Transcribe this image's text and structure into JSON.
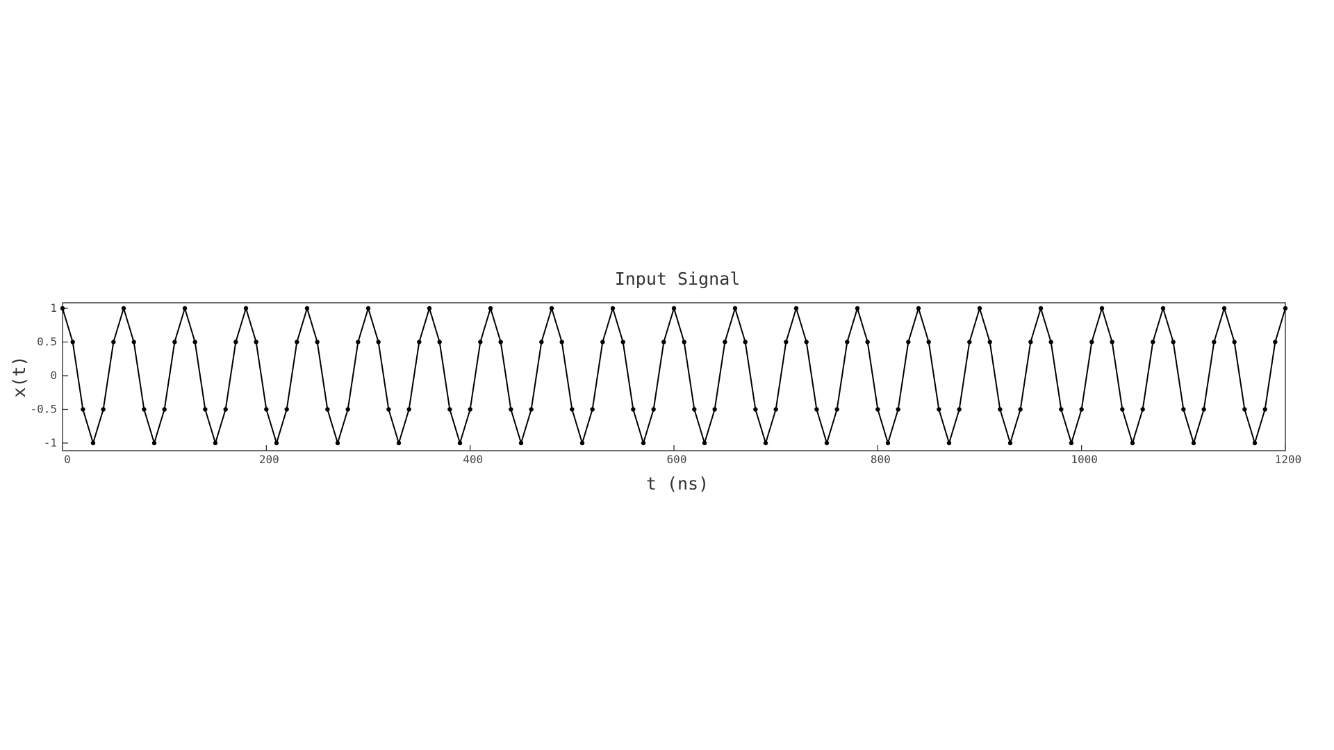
{
  "chart_data": {
    "type": "line",
    "title": "Input Signal",
    "xlabel": "t (ns)",
    "ylabel": "x(t)",
    "xlim": [
      0,
      1200
    ],
    "ylim": [
      -1.1,
      1
    ],
    "xticks": [
      0,
      200,
      400,
      600,
      800,
      1000,
      1200
    ],
    "xtick_labels": [
      "0",
      "200",
      "400",
      "600",
      "800",
      "1000",
      "1200"
    ],
    "yticks": [
      1,
      0.5,
      0,
      -0.5,
      -1
    ],
    "ytick_labels": [
      "1",
      "0.5",
      "0",
      "-0.5",
      "-1"
    ],
    "grid": false,
    "series": [
      {
        "color": "#000000",
        "marker": "dot",
        "x": [
          0,
          10,
          20,
          30,
          40,
          50,
          60,
          70,
          80,
          90,
          100,
          110,
          120,
          130,
          140,
          150,
          160,
          170,
          180,
          190,
          200,
          210,
          220,
          230,
          240,
          250,
          260,
          270,
          280,
          290,
          300,
          310,
          320,
          330,
          340,
          350,
          360,
          370,
          380,
          390,
          400,
          410,
          420,
          430,
          440,
          450,
          460,
          470,
          480,
          490,
          500,
          510,
          520,
          530,
          540,
          550,
          560,
          570,
          580,
          590,
          600,
          610,
          620,
          630,
          640,
          650,
          660,
          670,
          680,
          690,
          700,
          710,
          720,
          730,
          740,
          750,
          760,
          770,
          780,
          790,
          800,
          810,
          820,
          830,
          840,
          850,
          860,
          870,
          880,
          890,
          900,
          910,
          920,
          930,
          940,
          950,
          960,
          970,
          980,
          990,
          1000,
          1010,
          1020,
          1030,
          1040,
          1050,
          1060,
          1070,
          1080,
          1090,
          1100,
          1110,
          1120,
          1130,
          1140,
          1150,
          1160,
          1170,
          1180,
          1190,
          1200
        ],
        "y": [
          1,
          0.5,
          -0.5,
          -1,
          -0.5,
          0.5,
          1,
          0.5,
          -0.5,
          -1,
          -0.5,
          0.5,
          1,
          0.5,
          -0.5,
          -1,
          -0.5,
          0.5,
          1,
          0.5,
          -0.5,
          -1,
          -0.5,
          0.5,
          1,
          0.5,
          -0.5,
          -1,
          -0.5,
          0.5,
          1,
          0.5,
          -0.5,
          -1,
          -0.5,
          0.5,
          1,
          0.5,
          -0.5,
          -1,
          -0.5,
          0.5,
          1,
          0.5,
          -0.5,
          -1,
          -0.5,
          0.5,
          1,
          0.5,
          -0.5,
          -1,
          -0.5,
          0.5,
          1,
          0.5,
          -0.5,
          -1,
          -0.5,
          0.5,
          1,
          0.5,
          -0.5,
          -1,
          -0.5,
          0.5,
          1,
          0.5,
          -0.5,
          -1,
          -0.5,
          0.5,
          1,
          0.5,
          -0.5,
          -1,
          -0.5,
          0.5,
          1,
          0.5,
          -0.5,
          -1,
          -0.5,
          0.5,
          1,
          0.5,
          -0.5,
          -1,
          -0.5,
          0.5,
          1,
          0.5,
          -0.5,
          -1,
          -0.5,
          0.5,
          1,
          0.5,
          -0.5,
          -1,
          -0.5,
          0.5,
          1,
          0.5,
          -0.5,
          -1,
          -0.5,
          0.5,
          1,
          0.5,
          -0.5,
          -1,
          -0.5,
          0.5,
          1,
          0.5,
          -0.5,
          -1,
          -0.5,
          0.5,
          1
        ]
      }
    ]
  }
}
